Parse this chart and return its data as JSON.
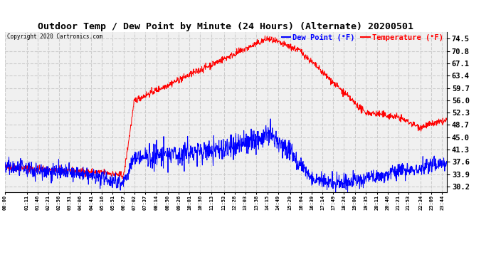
{
  "title": "Outdoor Temp / Dew Point by Minute (24 Hours) (Alternate) 20200501",
  "copyright": "Copyright 2020 Cartronics.com",
  "ylabel_right_ticks": [
    30.2,
    33.9,
    37.6,
    41.3,
    45.0,
    48.7,
    52.3,
    56.0,
    59.7,
    63.4,
    67.1,
    70.8,
    74.5
  ],
  "ylim": [
    28.5,
    76.5
  ],
  "temp_color": "red",
  "dew_color": "blue",
  "bg_color": "#ffffff",
  "plot_bg_color": "#f0f0f0",
  "grid_color": "#cccccc",
  "title_fontsize": 10,
  "legend_dew_label": "Dew Point (°F)",
  "legend_temp_label": "Temperature (°F)",
  "xtick_labels": [
    "00:00",
    "01:11",
    "01:46",
    "02:21",
    "02:56",
    "03:31",
    "04:06",
    "04:41",
    "05:16",
    "05:51",
    "06:27",
    "07:02",
    "07:37",
    "08:14",
    "08:50",
    "09:26",
    "10:01",
    "10:36",
    "11:13",
    "11:53",
    "12:28",
    "13:03",
    "13:38",
    "14:15",
    "14:49",
    "15:29",
    "16:04",
    "16:39",
    "17:14",
    "17:49",
    "18:24",
    "19:00",
    "19:35",
    "20:11",
    "20:46",
    "21:21",
    "21:53",
    "22:34",
    "23:09",
    "23:44"
  ]
}
